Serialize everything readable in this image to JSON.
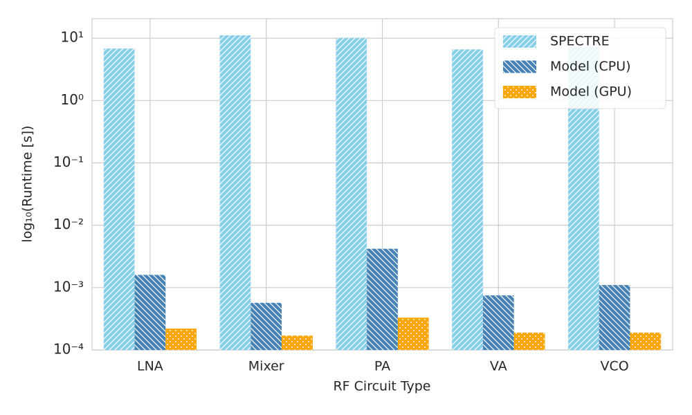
{
  "chart_data": {
    "type": "bar",
    "log_y": true,
    "grid": true,
    "legend": "upper right",
    "xlabel": "RF Circuit Type",
    "ylabel": "log₁₀(Runtime [s])",
    "categories": [
      "LNA",
      "Mixer",
      "PA",
      "VA",
      "VCO"
    ],
    "series": [
      {
        "name": "SPECTRE",
        "color": "#87ceeb",
        "hatch": "//",
        "values": [
          6.8,
          11.1,
          10,
          6.6,
          7.2
        ]
      },
      {
        "name": "Model (CPU)",
        "color": "#4682b4",
        "hatch": "\\\\",
        "values": [
          0.0016,
          0.00057,
          0.0042,
          0.00075,
          0.0011
        ]
      },
      {
        "name": "Model (GPU)",
        "color": "#ffa500",
        "hatch": "..",
        "values": [
          0.00022,
          0.00017,
          0.00033,
          0.00019,
          0.00019
        ]
      }
    ],
    "ylim": [
      0.0001,
      20.5
    ],
    "yticks": [
      {
        "value": 0.0001,
        "label": "10⁻⁴"
      },
      {
        "value": 0.001,
        "label": "10⁻³"
      },
      {
        "value": 0.01,
        "label": "10⁻²"
      },
      {
        "value": 0.1,
        "label": "10⁻¹"
      },
      {
        "value": 1,
        "label": "10⁰"
      },
      {
        "value": 10,
        "label": "10¹"
      }
    ]
  }
}
